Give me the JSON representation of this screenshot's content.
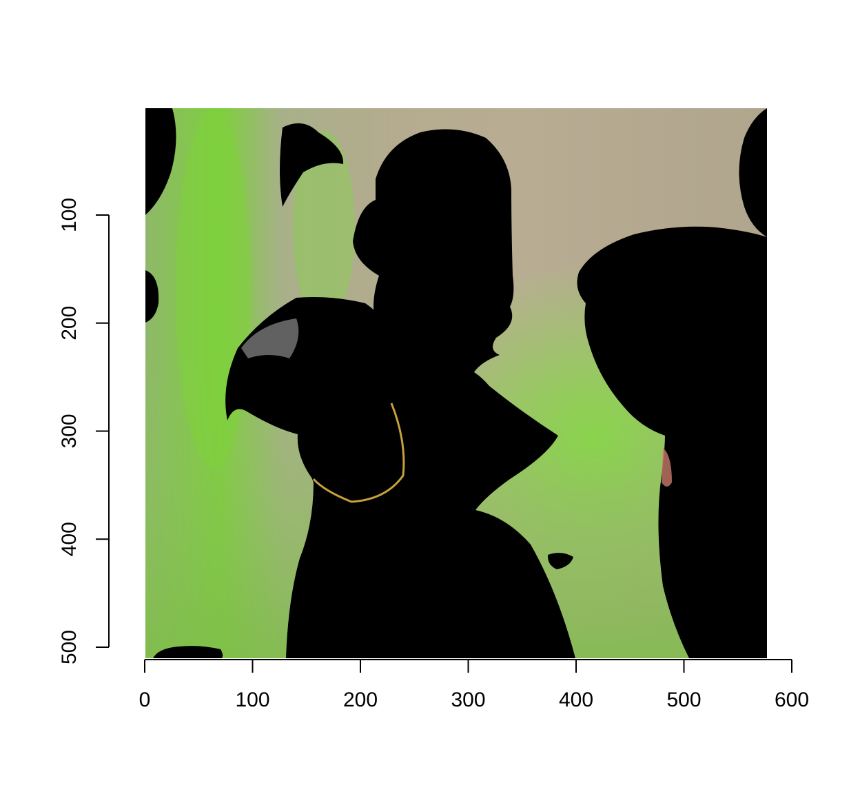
{
  "chart_data": {
    "type": "heatmap",
    "title": "",
    "xlabel": "",
    "ylabel": "",
    "xlim": [
      0,
      576
    ],
    "ylim": [
      0,
      512
    ],
    "x_axis": {
      "ticks": [
        0,
        100,
        200,
        300,
        400,
        500,
        600
      ],
      "tick_labels": [
        "0",
        "100",
        "200",
        "300",
        "400",
        "500",
        "600"
      ]
    },
    "y_axis": {
      "ticks": [
        100,
        200,
        300,
        400,
        500
      ],
      "tick_labels": [
        "100",
        "200",
        "300",
        "400",
        "500"
      ],
      "reversed": true
    },
    "image": {
      "description_colors": {
        "mask": "#000000",
        "green": "#7ad23c",
        "beige": "#b3a88c",
        "olive": "#9aa87a"
      },
      "masked_regions": [
        {
          "name": "top-left-blob"
        },
        {
          "name": "upper-left-small-blob"
        },
        {
          "name": "upper-center-blob"
        },
        {
          "name": "center-parrot-body"
        },
        {
          "name": "left-parrot-head"
        },
        {
          "name": "right-parrot"
        },
        {
          "name": "top-right-blob"
        },
        {
          "name": "bottom-left-strip"
        },
        {
          "name": "bottom-center-speckle"
        }
      ]
    }
  }
}
